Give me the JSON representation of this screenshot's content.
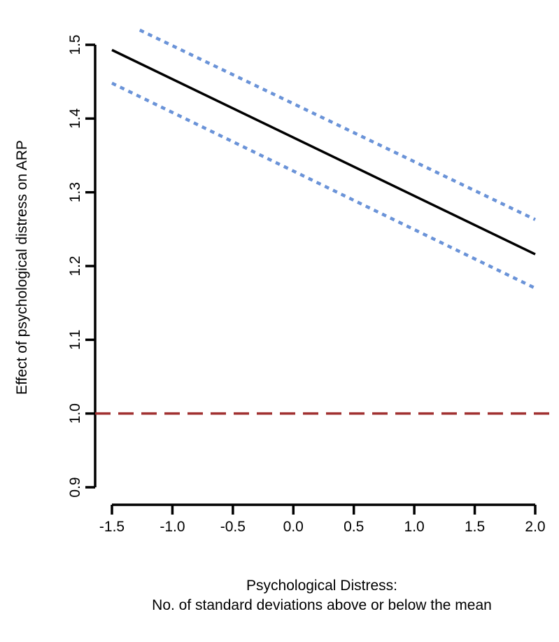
{
  "chart_data": {
    "type": "line",
    "title": "",
    "xlabel": [
      "Psychological Distress:",
      "No. of standard deviations above or below the mean"
    ],
    "ylabel": "Effect of psychological distress on ARP",
    "xlim": [
      -1.5,
      2.0
    ],
    "ylim": [
      0.9,
      1.5
    ],
    "x_ticks": [
      -1.5,
      -1.0,
      -0.5,
      0.0,
      0.5,
      1.0,
      1.5,
      2.0
    ],
    "x_tick_labels": [
      "-1.5",
      "-1.0",
      "-0.5",
      "0.0",
      "0.5",
      "1.0",
      "1.5",
      "2.0"
    ],
    "y_ticks": [
      0.9,
      1.0,
      1.1,
      1.2,
      1.3,
      1.4,
      1.5
    ],
    "y_tick_labels": [
      "0.9",
      "1.0",
      "1.1",
      "1.2",
      "1.3",
      "1.4",
      "1.5"
    ],
    "grid": false,
    "legend": "none",
    "series": [
      {
        "role": "estimate",
        "style": "solid",
        "color": "#000000",
        "x": [
          -1.5,
          2.0
        ],
        "y": [
          1.493,
          1.216
        ]
      },
      {
        "role": "upper-bound",
        "style": "dotted",
        "color": "#6a93d8",
        "x": [
          -1.27,
          2.0
        ],
        "y": [
          1.52,
          1.263
        ]
      },
      {
        "role": "lower-bound",
        "style": "dotted",
        "color": "#6a93d8",
        "x": [
          -1.5,
          2.0
        ],
        "y": [
          1.448,
          1.17
        ]
      }
    ],
    "reference_line": {
      "axis": "y",
      "value": 1.0,
      "style": "dashed",
      "color": "#a03030"
    }
  }
}
